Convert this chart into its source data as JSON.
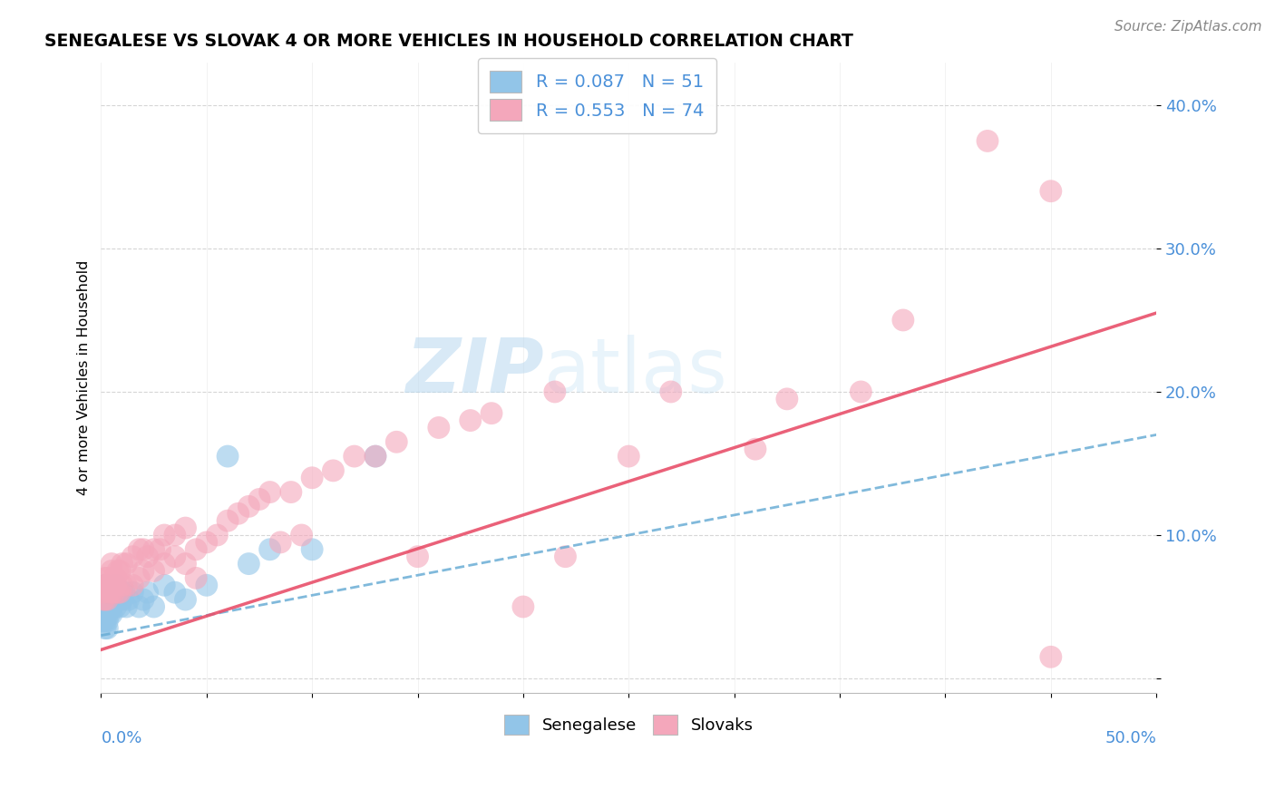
{
  "title": "SENEGALESE VS SLOVAK 4 OR MORE VEHICLES IN HOUSEHOLD CORRELATION CHART",
  "source": "Source: ZipAtlas.com",
  "ylabel": "4 or more Vehicles in Household",
  "xlim": [
    0.0,
    0.5
  ],
  "ylim": [
    -0.01,
    0.43
  ],
  "yticks": [
    0.0,
    0.1,
    0.2,
    0.3,
    0.4
  ],
  "ytick_labels": [
    "",
    "10.0%",
    "20.0%",
    "30.0%",
    "40.0%"
  ],
  "blue_color": "#92C5E8",
  "pink_color": "#F4A7BB",
  "blue_line_color": "#6AADD5",
  "pink_line_color": "#E8506A",
  "text_color": "#4A90D9",
  "watermark_zip": "ZIP",
  "watermark_atlas": "atlas",
  "legend_R1": "R = 0.087",
  "legend_N1": "N = 51",
  "legend_R2": "R = 0.553",
  "legend_N2": "N = 74",
  "blue_R": 0.087,
  "blue_N": 51,
  "pink_R": 0.553,
  "pink_N": 74,
  "blue_line_x0": 0.0,
  "blue_line_y0": 0.03,
  "blue_line_x1": 0.5,
  "blue_line_y1": 0.17,
  "pink_line_x0": 0.0,
  "pink_line_y0": 0.02,
  "pink_line_x1": 0.5,
  "pink_line_y1": 0.255,
  "blue_x": [
    0.001,
    0.001,
    0.001,
    0.001,
    0.001,
    0.002,
    0.002,
    0.002,
    0.002,
    0.002,
    0.002,
    0.002,
    0.003,
    0.003,
    0.003,
    0.003,
    0.003,
    0.003,
    0.004,
    0.004,
    0.004,
    0.004,
    0.005,
    0.005,
    0.005,
    0.006,
    0.006,
    0.007,
    0.007,
    0.008,
    0.008,
    0.009,
    0.01,
    0.01,
    0.011,
    0.012,
    0.013,
    0.015,
    0.018,
    0.02,
    0.022,
    0.025,
    0.03,
    0.035,
    0.04,
    0.05,
    0.06,
    0.07,
    0.08,
    0.1,
    0.13
  ],
  "blue_y": [
    0.055,
    0.06,
    0.045,
    0.05,
    0.04,
    0.035,
    0.055,
    0.06,
    0.045,
    0.05,
    0.04,
    0.065,
    0.055,
    0.06,
    0.045,
    0.05,
    0.04,
    0.035,
    0.06,
    0.055,
    0.045,
    0.05,
    0.06,
    0.045,
    0.05,
    0.055,
    0.06,
    0.05,
    0.065,
    0.055,
    0.06,
    0.05,
    0.06,
    0.055,
    0.06,
    0.05,
    0.055,
    0.06,
    0.05,
    0.055,
    0.06,
    0.05,
    0.065,
    0.06,
    0.055,
    0.065,
    0.155,
    0.08,
    0.09,
    0.09,
    0.155
  ],
  "pink_x": [
    0.001,
    0.001,
    0.002,
    0.002,
    0.002,
    0.003,
    0.003,
    0.003,
    0.004,
    0.004,
    0.005,
    0.005,
    0.005,
    0.006,
    0.006,
    0.007,
    0.007,
    0.008,
    0.008,
    0.009,
    0.009,
    0.01,
    0.01,
    0.012,
    0.012,
    0.015,
    0.015,
    0.018,
    0.018,
    0.02,
    0.02,
    0.022,
    0.025,
    0.025,
    0.028,
    0.03,
    0.03,
    0.035,
    0.035,
    0.04,
    0.04,
    0.045,
    0.045,
    0.05,
    0.055,
    0.06,
    0.065,
    0.07,
    0.075,
    0.08,
    0.085,
    0.09,
    0.095,
    0.1,
    0.11,
    0.12,
    0.13,
    0.14,
    0.15,
    0.16,
    0.175,
    0.185,
    0.2,
    0.215,
    0.22,
    0.25,
    0.27,
    0.31,
    0.325,
    0.36,
    0.38,
    0.42,
    0.45,
    0.45
  ],
  "pink_y": [
    0.06,
    0.055,
    0.07,
    0.065,
    0.055,
    0.07,
    0.065,
    0.055,
    0.065,
    0.06,
    0.075,
    0.08,
    0.06,
    0.07,
    0.06,
    0.07,
    0.065,
    0.075,
    0.06,
    0.075,
    0.06,
    0.08,
    0.065,
    0.08,
    0.065,
    0.085,
    0.065,
    0.09,
    0.07,
    0.09,
    0.075,
    0.085,
    0.09,
    0.075,
    0.09,
    0.1,
    0.08,
    0.1,
    0.085,
    0.105,
    0.08,
    0.09,
    0.07,
    0.095,
    0.1,
    0.11,
    0.115,
    0.12,
    0.125,
    0.13,
    0.095,
    0.13,
    0.1,
    0.14,
    0.145,
    0.155,
    0.155,
    0.165,
    0.085,
    0.175,
    0.18,
    0.185,
    0.05,
    0.2,
    0.085,
    0.155,
    0.2,
    0.16,
    0.195,
    0.2,
    0.25,
    0.375,
    0.34,
    0.015
  ]
}
